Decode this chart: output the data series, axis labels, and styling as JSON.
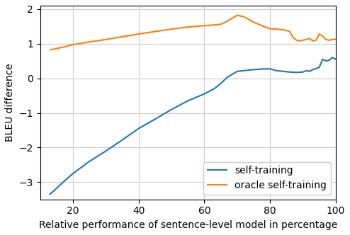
{
  "title": "",
  "xlabel": "Relative performance of sentence-level model in percentage",
  "ylabel": "BLEU difference",
  "xlim": [
    10,
    100
  ],
  "ylim": [
    -3.5,
    2.1
  ],
  "xticks": [
    20,
    40,
    60,
    80,
    100
  ],
  "yticks": [
    -3,
    -2,
    -1,
    0,
    1,
    2
  ],
  "legend_loc": "lower right",
  "self_training_color": "#1f77b4",
  "oracle_color": "#ff7f0e",
  "self_training_x": [
    13,
    17,
    20,
    25,
    30,
    35,
    40,
    45,
    50,
    55,
    60,
    63,
    65,
    67,
    70,
    72,
    75,
    78,
    80,
    82,
    84,
    86,
    88,
    90,
    91,
    92,
    93,
    94,
    95,
    96,
    97,
    98,
    99,
    100
  ],
  "self_training_y": [
    -3.35,
    -3.0,
    -2.75,
    -2.4,
    -2.1,
    -1.78,
    -1.45,
    -1.18,
    -0.9,
    -0.65,
    -0.45,
    -0.3,
    -0.15,
    0.03,
    0.2,
    0.22,
    0.25,
    0.27,
    0.27,
    0.22,
    0.2,
    0.18,
    0.17,
    0.18,
    0.22,
    0.2,
    0.25,
    0.28,
    0.32,
    0.55,
    0.5,
    0.52,
    0.6,
    0.55
  ],
  "oracle_x": [
    13,
    17,
    20,
    25,
    30,
    35,
    40,
    45,
    50,
    55,
    60,
    63,
    65,
    67,
    70,
    72,
    75,
    78,
    80,
    82,
    84,
    85,
    86,
    87,
    88,
    89,
    90,
    91,
    92,
    93,
    94,
    95,
    96,
    97,
    98,
    99,
    100
  ],
  "oracle_y": [
    0.82,
    0.9,
    0.97,
    1.05,
    1.12,
    1.2,
    1.28,
    1.35,
    1.42,
    1.48,
    1.52,
    1.54,
    1.56,
    1.65,
    1.82,
    1.78,
    1.62,
    1.5,
    1.43,
    1.42,
    1.4,
    1.38,
    1.35,
    1.18,
    1.1,
    1.08,
    1.1,
    1.12,
    1.15,
    1.08,
    1.1,
    1.28,
    1.22,
    1.12,
    1.1,
    1.12,
    1.13
  ],
  "linewidth": 1.5,
  "tick_fontsize": 10,
  "label_fontsize": 10,
  "legend_fontsize": 10
}
